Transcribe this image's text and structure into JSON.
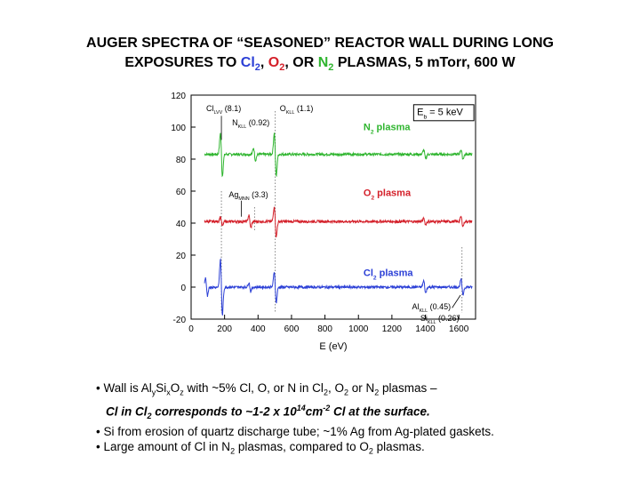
{
  "title": {
    "line1": "AUGER SPECTRA OF “SEASONED” REACTOR WALL DURING LONG",
    "line2_pre": "EXPOSURES TO ",
    "cl": "Cl",
    "cl_sub": "2",
    "sep1": ", ",
    "o": "O",
    "o_sub": "2",
    "sep2": ", OR ",
    "n": "N",
    "n_sub": "2",
    "line2_post": " PLASMAS, 5 mTorr, 600 W"
  },
  "colors": {
    "cl": "#2b3fd6",
    "o": "#d4202a",
    "n": "#2fb52f"
  },
  "chart_data": {
    "type": "line",
    "xlabel": "E (eV)",
    "xlim": [
      0,
      1700
    ],
    "ylim": [
      -20,
      120
    ],
    "xticks": [
      0,
      200,
      400,
      600,
      800,
      1000,
      1200,
      1400,
      1600
    ],
    "yticks": [
      -20,
      0,
      20,
      40,
      60,
      80,
      100,
      120
    ],
    "beam_label": "E",
    "beam_sub": "b",
    "beam_value": "= 5 keV",
    "series": [
      {
        "name": "N2 plasma",
        "label_main": "N",
        "label_sub": "2",
        "label_rest": " plasma",
        "color": "#2fb52f",
        "baseline": 83,
        "peaks": [
          {
            "x": 181,
            "amp": 14
          },
          {
            "x": 379,
            "amp": 4
          },
          {
            "x": 503,
            "amp": 14
          },
          {
            "x": 1396,
            "amp": 3
          },
          {
            "x": 1619,
            "amp": 3
          }
        ]
      },
      {
        "name": "O2 plasma",
        "label_main": "O",
        "label_sub": "2",
        "label_rest": " plasma",
        "color": "#d4202a",
        "baseline": 41,
        "peaks": [
          {
            "x": 181,
            "amp": 3
          },
          {
            "x": 351,
            "amp": 4
          },
          {
            "x": 503,
            "amp": 10
          },
          {
            "x": 1396,
            "amp": 2
          },
          {
            "x": 1619,
            "amp": 3
          }
        ]
      },
      {
        "name": "Cl2 plasma",
        "label_main": "Cl",
        "label_sub": "2",
        "label_rest": " plasma",
        "color": "#2b3fd6",
        "baseline": 0,
        "peaks": [
          {
            "x": 92,
            "amp": 6
          },
          {
            "x": 181,
            "amp": 18
          },
          {
            "x": 351,
            "amp": 3
          },
          {
            "x": 503,
            "amp": 10
          },
          {
            "x": 1396,
            "amp": 4
          },
          {
            "x": 1619,
            "amp": 5
          }
        ]
      }
    ],
    "annotations": [
      {
        "main": "Cl",
        "sub": "LVV",
        "value": "(8.1)"
      },
      {
        "main": "O",
        "sub": "KLL",
        "value": "(1.1)"
      },
      {
        "main": "N",
        "sub": "KLL",
        "value": "(0.92)"
      },
      {
        "main": "Ag",
        "sub": "MNN",
        "value": "(3.3)"
      },
      {
        "main": "Al",
        "sub": "KLL",
        "value": "(0.45)"
      },
      {
        "main": "Si",
        "sub": "KLL",
        "value": "(0.26)"
      }
    ]
  },
  "bullets": {
    "b1_a": "• Wall is Al",
    "b1_y": "y",
    "b1_b": "Si",
    "b1_x": "x",
    "b1_c": "O",
    "b1_z": "z",
    "b1_d": " with ~5% Cl, O, or N in Cl",
    "b1_s1": "2",
    "b1_e": ", O",
    "b1_s2": "2",
    "b1_f": " or N",
    "b1_s3": "2",
    "b1_g": " plasmas –",
    "b2_a": "Cl in Cl",
    "b2_s": "2",
    "b2_b": " corresponds to ~1-2 x 10",
    "b2_sup1": "14",
    "b2_c": "cm",
    "b2_sup2": "-2",
    "b2_d": " Cl at the surface.",
    "b3": "• Si from erosion of quartz discharge tube; ~1% Ag from Ag-plated gaskets.",
    "b4_a": "• Large amount of Cl in N",
    "b4_s1": "2",
    "b4_b": " plasmas, compared to O",
    "b4_s2": "2",
    "b4_c": " plasmas."
  }
}
